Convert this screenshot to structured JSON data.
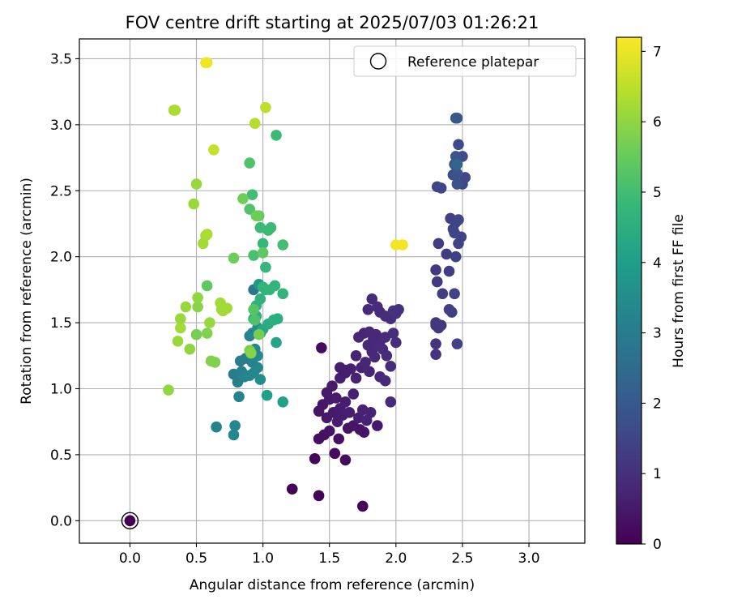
{
  "chart_data": {
    "type": "scatter",
    "title": "FOV centre drift starting at 2025/07/03 01:26:21",
    "xlabel": "Angular distance from reference (arcmin)",
    "ylabel": "Rotation from reference (arcmin)",
    "xlim": [
      -0.38,
      3.42
    ],
    "ylim": [
      -0.17,
      3.65
    ],
    "xticks": [
      0.0,
      0.5,
      1.0,
      1.5,
      2.0,
      2.5,
      3.0
    ],
    "xtick_labels": [
      "0.0",
      "0.5",
      "1.0",
      "1.5",
      "2.0",
      "2.5",
      "3.0"
    ],
    "yticks": [
      0.0,
      0.5,
      1.0,
      1.5,
      2.0,
      2.5,
      3.0,
      3.5
    ],
    "ytick_labels": [
      "0.0",
      "0.5",
      "1.0",
      "1.5",
      "2.0",
      "2.5",
      "3.0",
      "3.5"
    ],
    "grid": true,
    "colormap": "viridis",
    "colorbar": {
      "label": "Hours from first FF file",
      "range": [
        0,
        7.2
      ],
      "ticks": [
        0,
        1,
        2,
        3,
        4,
        5,
        6,
        7
      ],
      "tick_labels": [
        "0",
        "1",
        "2",
        "3",
        "4",
        "5",
        "6",
        "7"
      ]
    },
    "legend": {
      "placement": "top-right",
      "entries": [
        "Reference platepar"
      ]
    },
    "reference_point": {
      "x": 0.0,
      "y": 0.0
    },
    "points": [
      [
        1.22,
        0.24,
        0.05
      ],
      [
        1.42,
        0.19,
        0.05
      ],
      [
        1.75,
        0.11,
        0.1
      ],
      [
        1.39,
        0.47,
        0.15
      ],
      [
        1.54,
        0.51,
        0.2
      ],
      [
        1.62,
        0.46,
        0.2
      ],
      [
        1.42,
        0.62,
        0.3
      ],
      [
        1.46,
        0.65,
        0.3
      ],
      [
        1.5,
        0.68,
        0.35
      ],
      [
        1.57,
        0.62,
        0.3
      ],
      [
        1.64,
        0.7,
        0.4
      ],
      [
        1.68,
        0.72,
        0.4
      ],
      [
        1.73,
        0.69,
        0.45
      ],
      [
        1.76,
        0.67,
        0.4
      ],
      [
        1.86,
        0.72,
        0.5
      ],
      [
        1.42,
        0.83,
        0.4
      ],
      [
        1.45,
        0.88,
        0.45
      ],
      [
        1.48,
        0.78,
        0.5
      ],
      [
        1.5,
        0.92,
        0.5
      ],
      [
        1.53,
        0.82,
        0.5
      ],
      [
        1.56,
        0.75,
        0.55
      ],
      [
        1.58,
        0.85,
        0.55
      ],
      [
        1.6,
        0.8,
        0.6
      ],
      [
        1.62,
        0.9,
        0.6
      ],
      [
        1.65,
        0.82,
        0.6
      ],
      [
        1.68,
        0.96,
        0.65
      ],
      [
        1.72,
        0.78,
        0.65
      ],
      [
        1.75,
        0.84,
        0.7
      ],
      [
        1.78,
        0.76,
        0.7
      ],
      [
        1.81,
        0.82,
        0.7
      ],
      [
        1.48,
        0.97,
        0.5
      ],
      [
        1.52,
        1.02,
        0.55
      ],
      [
        1.55,
        0.93,
        0.55
      ],
      [
        1.58,
        1.08,
        0.6
      ],
      [
        1.62,
        1.12,
        0.6
      ],
      [
        1.66,
        1.15,
        0.65
      ],
      [
        1.7,
        1.08,
        0.7
      ],
      [
        1.74,
        1.16,
        0.7
      ],
      [
        1.77,
        1.2,
        0.75
      ],
      [
        1.8,
        1.13,
        0.75
      ],
      [
        1.84,
        1.24,
        0.8
      ],
      [
        1.88,
        1.09,
        0.8
      ],
      [
        1.92,
        1.06,
        0.85
      ],
      [
        1.96,
        0.9,
        0.85
      ],
      [
        1.44,
        1.31,
        0.2
      ],
      [
        1.58,
        1.16,
        0.6
      ],
      [
        1.62,
        1.14,
        0.6
      ],
      [
        1.7,
        1.25,
        0.7
      ],
      [
        1.72,
        1.39,
        0.75
      ],
      [
        1.76,
        1.42,
        0.75
      ],
      [
        1.79,
        1.33,
        0.8
      ],
      [
        1.82,
        1.28,
        0.8
      ],
      [
        1.85,
        1.41,
        0.8
      ],
      [
        1.88,
        1.36,
        0.85
      ],
      [
        1.9,
        1.3,
        0.85
      ],
      [
        1.93,
        1.25,
        0.9
      ],
      [
        1.96,
        1.17,
        0.9
      ],
      [
        1.98,
        1.42,
        0.95
      ],
      [
        2.0,
        1.35,
        0.95
      ],
      [
        1.8,
        1.43,
        0.8
      ],
      [
        1.83,
        1.38,
        0.8
      ],
      [
        1.86,
        1.33,
        0.85
      ],
      [
        1.92,
        1.39,
        0.9
      ],
      [
        1.86,
        1.62,
        0.9
      ],
      [
        1.79,
        1.6,
        0.85
      ],
      [
        1.82,
        1.68,
        0.85
      ],
      [
        1.88,
        1.58,
        0.9
      ],
      [
        1.92,
        1.55,
        0.95
      ],
      [
        1.96,
        1.53,
        0.95
      ],
      [
        1.98,
        1.59,
        1.0
      ],
      [
        2.0,
        1.57,
        1.0
      ],
      [
        2.02,
        1.6,
        1.0
      ],
      [
        2.3,
        1.26,
        1.1
      ],
      [
        2.3,
        1.34,
        1.1
      ],
      [
        2.3,
        1.48,
        1.15
      ],
      [
        2.3,
        1.5,
        1.15
      ],
      [
        2.32,
        1.46,
        1.15
      ],
      [
        2.34,
        1.48,
        1.2
      ],
      [
        2.3,
        1.9,
        1.2
      ],
      [
        2.31,
        1.81,
        1.2
      ],
      [
        2.32,
        2.1,
        1.25
      ],
      [
        2.35,
        1.72,
        1.3
      ],
      [
        2.38,
        2.02,
        1.3
      ],
      [
        2.4,
        1.89,
        1.3
      ],
      [
        2.4,
        1.6,
        1.35
      ],
      [
        2.42,
        1.58,
        1.35
      ],
      [
        2.44,
        1.72,
        1.4
      ],
      [
        2.46,
        1.34,
        1.4
      ],
      [
        2.45,
        2.0,
        1.4
      ],
      [
        2.47,
        2.1,
        1.45
      ],
      [
        2.49,
        2.15,
        1.45
      ],
      [
        2.41,
        2.29,
        1.4
      ],
      [
        2.43,
        2.21,
        1.45
      ],
      [
        2.45,
        2.26,
        1.45
      ],
      [
        2.47,
        2.28,
        1.5
      ],
      [
        2.44,
        2.18,
        1.5
      ],
      [
        2.31,
        2.53,
        1.5
      ],
      [
        2.34,
        2.52,
        1.5
      ],
      [
        2.5,
        2.55,
        1.55
      ],
      [
        2.52,
        2.6,
        1.55
      ],
      [
        2.5,
        2.76,
        1.6
      ],
      [
        2.47,
        2.85,
        1.6
      ],
      [
        2.43,
        2.62,
        1.7
      ],
      [
        2.45,
        2.62,
        1.75
      ],
      [
        2.46,
        2.63,
        1.8
      ],
      [
        2.44,
        2.7,
        1.85
      ],
      [
        2.45,
        2.76,
        1.9
      ],
      [
        2.46,
        2.55,
        1.8
      ],
      [
        2.45,
        3.05,
        1.9
      ],
      [
        2.46,
        3.05,
        1.95
      ],
      [
        2.45,
        2.69,
        2.0
      ],
      [
        2.46,
        2.7,
        2.3
      ],
      [
        0.65,
        0.71,
        3.2
      ],
      [
        0.79,
        0.72,
        3.3
      ],
      [
        0.78,
        0.65,
        3.4
      ],
      [
        0.82,
        0.94,
        3.2
      ],
      [
        0.78,
        1.11,
        3.0
      ],
      [
        0.81,
        1.05,
        3.1
      ],
      [
        0.84,
        1.13,
        3.1
      ],
      [
        0.86,
        1.09,
        3.2
      ],
      [
        0.9,
        1.1,
        3.3
      ],
      [
        0.93,
        1.12,
        3.3
      ],
      [
        0.96,
        1.16,
        3.3
      ],
      [
        0.98,
        1.07,
        3.5
      ],
      [
        0.83,
        1.21,
        3.0
      ],
      [
        0.87,
        1.23,
        3.1
      ],
      [
        0.92,
        1.2,
        3.2
      ],
      [
        0.94,
        1.3,
        3.3
      ],
      [
        0.96,
        1.25,
        3.4
      ],
      [
        0.9,
        1.4,
        3.2
      ],
      [
        0.92,
        1.42,
        3.3
      ],
      [
        0.96,
        1.46,
        3.5
      ],
      [
        0.98,
        1.42,
        3.6
      ],
      [
        0.93,
        1.75,
        2.9
      ],
      [
        0.97,
        1.79,
        3.8
      ],
      [
        1.03,
        0.95,
        4.0
      ],
      [
        1.15,
        0.9,
        4.1
      ],
      [
        1.1,
        1.35,
        4.2
      ],
      [
        1.0,
        1.45,
        4.3
      ],
      [
        1.04,
        1.49,
        4.4
      ],
      [
        1.08,
        1.52,
        4.5
      ],
      [
        1.11,
        1.53,
        4.5
      ],
      [
        0.95,
        1.55,
        4.5
      ],
      [
        0.93,
        1.53,
        4.6
      ],
      [
        0.95,
        1.63,
        4.6
      ],
      [
        0.98,
        1.68,
        4.6
      ],
      [
        1.02,
        1.75,
        4.6
      ],
      [
        1.05,
        1.75,
        4.7
      ],
      [
        1.09,
        1.78,
        4.7
      ],
      [
        1.15,
        1.72,
        4.7
      ],
      [
        1.0,
        1.77,
        4.7
      ],
      [
        1.02,
        1.92,
        4.8
      ],
      [
        1.0,
        2.1,
        4.8
      ],
      [
        1.04,
        2.2,
        4.9
      ],
      [
        1.06,
        2.22,
        4.9
      ],
      [
        0.98,
        2.22,
        4.9
      ],
      [
        1.15,
        2.09,
        5.0
      ],
      [
        1.1,
        2.92,
        4.9
      ],
      [
        0.92,
        2.47,
        5.0
      ],
      [
        0.93,
        2.01,
        5.1
      ],
      [
        0.9,
        2.36,
        5.2
      ],
      [
        0.9,
        2.71,
        5.2
      ],
      [
        0.94,
        1.52,
        5.2
      ],
      [
        0.93,
        1.6,
        5.3
      ],
      [
        0.97,
        2.31,
        5.4
      ],
      [
        1.0,
        2.03,
        5.4
      ],
      [
        0.58,
        1.78,
        5.4
      ],
      [
        0.85,
        2.44,
        5.6
      ],
      [
        0.95,
        2.31,
        5.6
      ],
      [
        0.78,
        1.99,
        5.6
      ],
      [
        0.9,
        1.29,
        5.7
      ],
      [
        0.91,
        1.27,
        5.9
      ],
      [
        0.97,
        1.41,
        5.7
      ],
      [
        0.5,
        1.41,
        5.7
      ],
      [
        0.58,
        1.42,
        5.8
      ],
      [
        0.61,
        1.21,
        5.8
      ],
      [
        0.64,
        1.2,
        5.8
      ],
      [
        0.51,
        1.62,
        5.9
      ],
      [
        0.51,
        1.69,
        6.0
      ],
      [
        0.45,
        1.3,
        6.0
      ],
      [
        0.42,
        1.62,
        6.1
      ],
      [
        0.38,
        1.53,
        6.1
      ],
      [
        0.36,
        1.36,
        6.1
      ],
      [
        0.38,
        1.46,
        6.2
      ],
      [
        0.6,
        1.5,
        6.1
      ],
      [
        0.69,
        1.6,
        6.1
      ],
      [
        0.68,
        1.65,
        6.2
      ],
      [
        0.7,
        1.59,
        6.2
      ],
      [
        0.73,
        1.61,
        6.2
      ],
      [
        0.29,
        0.99,
        6.0
      ],
      [
        0.5,
        2.55,
        6.1
      ],
      [
        0.48,
        2.4,
        6.1
      ],
      [
        0.55,
        2.1,
        6.2
      ],
      [
        0.57,
        2.16,
        6.2
      ],
      [
        0.58,
        2.17,
        6.3
      ],
      [
        0.33,
        3.11,
        6.3
      ],
      [
        0.34,
        3.11,
        6.3
      ],
      [
        0.94,
        3.01,
        6.4
      ],
      [
        1.02,
        3.13,
        6.5
      ],
      [
        0.63,
        2.81,
        6.6
      ],
      [
        0.57,
        3.47,
        7.0
      ],
      [
        0.58,
        3.47,
        7.05
      ],
      [
        2.0,
        2.09,
        7.1
      ],
      [
        2.05,
        2.09,
        7.1
      ]
    ]
  }
}
